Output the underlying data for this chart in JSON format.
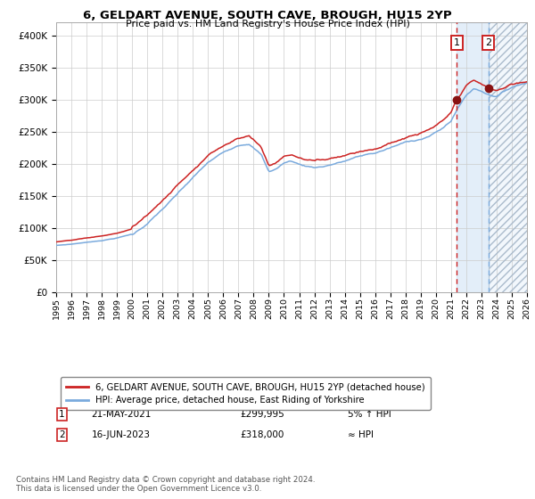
{
  "title": "6, GELDART AVENUE, SOUTH CAVE, BROUGH, HU15 2YP",
  "subtitle": "Price paid vs. HM Land Registry's House Price Index (HPI)",
  "legend_line1": "6, GELDART AVENUE, SOUTH CAVE, BROUGH, HU15 2YP (detached house)",
  "legend_line2": "HPI: Average price, detached house, East Riding of Yorkshire",
  "transaction1_date": "21-MAY-2021",
  "transaction1_price": "£299,995",
  "transaction1_note": "5% ↑ HPI",
  "transaction1_year": 2021.38,
  "transaction2_date": "16-JUN-2023",
  "transaction2_price": "£318,000",
  "transaction2_note": "≈ HPI",
  "transaction2_year": 2023.46,
  "hpi_line_color": "#7aaadd",
  "price_line_color": "#cc2222",
  "marker_color": "#881111",
  "vline1_color": "#cc2222",
  "vline2_color": "#7aaadd",
  "shading_color": "#cce0f5",
  "grid_color": "#cccccc",
  "background_color": "#ffffff",
  "ylim": [
    0,
    420000
  ],
  "xlim_start": 1995,
  "xlim_end": 2026,
  "footer": "Contains HM Land Registry data © Crown copyright and database right 2024.\nThis data is licensed under the Open Government Licence v3.0."
}
